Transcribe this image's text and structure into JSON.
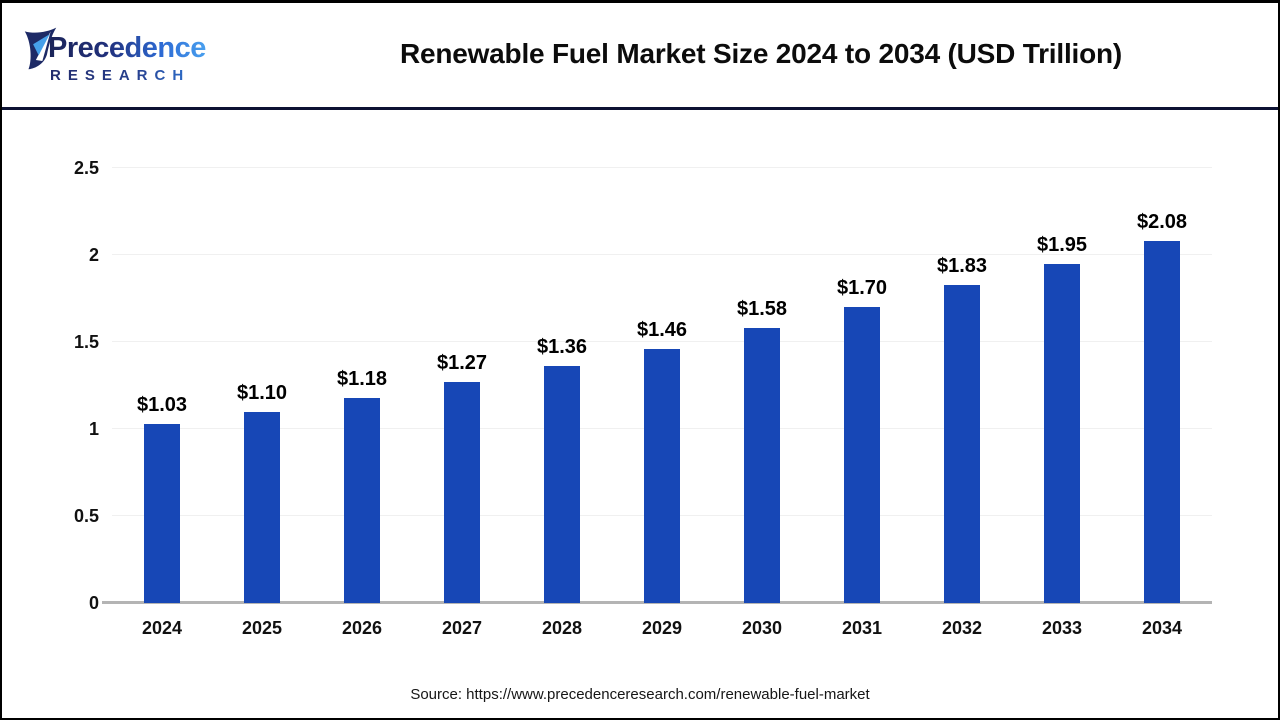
{
  "header": {
    "logo": {
      "line1": "Precedence",
      "line2": "RESEARCH",
      "icon": "leaf-icon"
    },
    "title": "Renewable Fuel Market Size 2024 to 2034 (USD Trillion)"
  },
  "chart_data": {
    "type": "bar",
    "title": "Renewable Fuel Market Size 2024 to 2034 (USD Trillion)",
    "categories": [
      "2024",
      "2025",
      "2026",
      "2027",
      "2028",
      "2029",
      "2030",
      "2031",
      "2032",
      "2033",
      "2034"
    ],
    "values": [
      1.03,
      1.1,
      1.18,
      1.27,
      1.36,
      1.46,
      1.58,
      1.7,
      1.83,
      1.95,
      2.08
    ],
    "value_labels": [
      "$1.03",
      "$1.10",
      "$1.18",
      "$1.27",
      "$1.36",
      "$1.46",
      "$1.58",
      "$1.70",
      "$1.83",
      "$1.95",
      "$2.08"
    ],
    "xlabel": "",
    "ylabel": "",
    "ylim": [
      0,
      2.5
    ],
    "yticks": [
      0,
      0.5,
      1,
      1.5,
      2,
      2.5
    ],
    "ytick_labels": [
      "0",
      "0.5",
      "1",
      "1.5",
      "2",
      "2.5"
    ],
    "grid": true,
    "legend": "none",
    "bar_color": "#1747B6",
    "gridline_color": "#f0f0f0",
    "axis_line_color": "#b4b4b4"
  },
  "footer": {
    "source": "Source: https://www.precedenceresearch.com/renewable-fuel-market"
  },
  "colors": {
    "accent_blue": "#1747B6",
    "separator_navy": "#0d1233",
    "logo_navy": "#21307c",
    "logo_blue": "#2e7bdc",
    "leaf_light_blue": "#46a0ea"
  }
}
